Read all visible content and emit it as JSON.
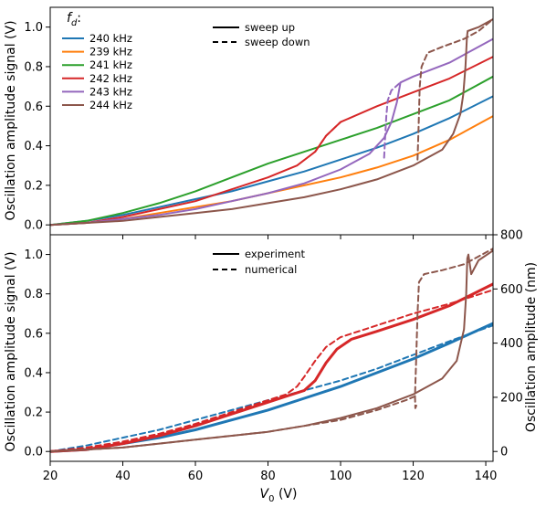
{
  "chart_data": [
    {
      "type": "line",
      "ylabel": "Oscillation amplitude signal (V)",
      "xlim": [
        20,
        142
      ],
      "ylim": [
        -0.05,
        1.1
      ],
      "yticks": [
        "0.0",
        "0.2",
        "0.4",
        "0.6",
        "0.8",
        "1.0"
      ],
      "legend": {
        "placement": "top-left",
        "title": "f_d:",
        "title_main": "f",
        "title_sub": "d",
        "title_suffix": ":"
      },
      "style_legend": {
        "placement": "top-center",
        "entries": [
          {
            "label": "sweep up",
            "dash": "solid"
          },
          {
            "label": "sweep down",
            "dash": "dashed"
          }
        ]
      },
      "series": [
        {
          "name": "240 kHz",
          "color": "#1f77b4",
          "style": "solid",
          "points": [
            [
              20,
              0.0
            ],
            [
              30,
              0.02
            ],
            [
              40,
              0.05
            ],
            [
              50,
              0.09
            ],
            [
              60,
              0.13
            ],
            [
              70,
              0.17
            ],
            [
              80,
              0.22
            ],
            [
              90,
              0.27
            ],
            [
              100,
              0.33
            ],
            [
              110,
              0.39
            ],
            [
              120,
              0.46
            ],
            [
              130,
              0.54
            ],
            [
              142,
              0.65
            ]
          ]
        },
        {
          "name": "239 kHz",
          "color": "#ff7f0e",
          "style": "solid",
          "points": [
            [
              20,
              0.0
            ],
            [
              30,
              0.01
            ],
            [
              40,
              0.03
            ],
            [
              50,
              0.06
            ],
            [
              60,
              0.09
            ],
            [
              70,
              0.12
            ],
            [
              80,
              0.16
            ],
            [
              90,
              0.2
            ],
            [
              100,
              0.24
            ],
            [
              110,
              0.29
            ],
            [
              120,
              0.35
            ],
            [
              130,
              0.43
            ],
            [
              142,
              0.55
            ]
          ]
        },
        {
          "name": "241 kHz",
          "color": "#2ca02c",
          "style": "solid",
          "points": [
            [
              20,
              0.0
            ],
            [
              30,
              0.02
            ],
            [
              40,
              0.06
            ],
            [
              50,
              0.11
            ],
            [
              60,
              0.17
            ],
            [
              70,
              0.24
            ],
            [
              80,
              0.31
            ],
            [
              90,
              0.37
            ],
            [
              100,
              0.43
            ],
            [
              110,
              0.49
            ],
            [
              120,
              0.56
            ],
            [
              130,
              0.63
            ],
            [
              142,
              0.75
            ]
          ]
        },
        {
          "name": "242 kHz",
          "color": "#d62728",
          "style": "solid",
          "points": [
            [
              20,
              0.0
            ],
            [
              30,
              0.01
            ],
            [
              40,
              0.04
            ],
            [
              50,
              0.08
            ],
            [
              60,
              0.12
            ],
            [
              70,
              0.18
            ],
            [
              80,
              0.24
            ],
            [
              88,
              0.3
            ],
            [
              93,
              0.37
            ],
            [
              96,
              0.45
            ],
            [
              100,
              0.52
            ],
            [
              110,
              0.6
            ],
            [
              120,
              0.67
            ],
            [
              130,
              0.74
            ],
            [
              142,
              0.85
            ]
          ]
        },
        {
          "name": "243 kHz",
          "color": "#9467bd",
          "style": "solid",
          "points": [
            [
              20,
              0.0
            ],
            [
              30,
              0.01
            ],
            [
              40,
              0.03
            ],
            [
              50,
              0.05
            ],
            [
              60,
              0.08
            ],
            [
              70,
              0.12
            ],
            [
              80,
              0.16
            ],
            [
              90,
              0.21
            ],
            [
              100,
              0.28
            ],
            [
              108,
              0.36
            ],
            [
              112,
              0.44
            ],
            [
              114,
              0.52
            ],
            [
              115.5,
              0.62
            ],
            [
              116.5,
              0.72
            ],
            [
              120,
              0.75
            ],
            [
              130,
              0.82
            ],
            [
              142,
              0.94
            ]
          ]
        },
        {
          "name": "244 kHz",
          "color": "#8c564b",
          "style": "solid",
          "points": [
            [
              20,
              0.0
            ],
            [
              30,
              0.01
            ],
            [
              40,
              0.02
            ],
            [
              50,
              0.04
            ],
            [
              60,
              0.06
            ],
            [
              70,
              0.08
            ],
            [
              80,
              0.11
            ],
            [
              90,
              0.14
            ],
            [
              100,
              0.18
            ],
            [
              110,
              0.23
            ],
            [
              120,
              0.3
            ],
            [
              128,
              0.38
            ],
            [
              131,
              0.46
            ],
            [
              133,
              0.56
            ],
            [
              133.8,
              0.66
            ],
            [
              134.4,
              0.8
            ],
            [
              134.8,
              0.95
            ],
            [
              135,
              0.98
            ],
            [
              138,
              1.0
            ],
            [
              142,
              1.04
            ]
          ]
        },
        {
          "name": "242 kHz sweep down",
          "color": "#d62728",
          "style": "dashed",
          "points": [
            [
              93,
              0.37
            ],
            [
              96,
              0.45
            ],
            [
              100,
              0.52
            ]
          ]
        },
        {
          "name": "243 kHz sweep down",
          "color": "#9467bd",
          "style": "dashed",
          "points": [
            [
              112,
              0.34
            ],
            [
              112.3,
              0.45
            ],
            [
              112.6,
              0.55
            ],
            [
              113,
              0.63
            ],
            [
              114,
              0.68
            ],
            [
              116.5,
              0.72
            ]
          ]
        },
        {
          "name": "244 kHz sweep down",
          "color": "#8c564b",
          "style": "dashed",
          "points": [
            [
              121.2,
              0.33
            ],
            [
              121.5,
              0.5
            ],
            [
              121.8,
              0.7
            ],
            [
              122.3,
              0.8
            ],
            [
              124,
              0.87
            ],
            [
              128,
              0.9
            ],
            [
              134,
              0.94
            ],
            [
              138,
              0.98
            ],
            [
              142,
              1.04
            ]
          ]
        }
      ]
    },
    {
      "type": "line",
      "xlabel": "V_0 (V)",
      "xlabel_main": "V",
      "xlabel_sub": "0",
      "xlabel_suffix": " (V)",
      "ylabel": "Oscillation amplitude signal (V)",
      "ylabel_right": "Oscillation amplitude (nm)",
      "xlim": [
        20,
        142
      ],
      "ylim": [
        -0.05,
        1.1
      ],
      "xticks": [
        "20",
        "40",
        "60",
        "80",
        "100",
        "120",
        "140"
      ],
      "yticks": [
        "0.0",
        "0.2",
        "0.4",
        "0.6",
        "0.8",
        "1.0"
      ],
      "yticks_right": [
        "0",
        "200",
        "400",
        "600",
        "800"
      ],
      "style_legend": {
        "placement": "top-center",
        "entries": [
          {
            "label": "experiment",
            "dash": "solid"
          },
          {
            "label": "numerical",
            "dash": "dashed"
          }
        ]
      },
      "series": [
        {
          "name": "240 kHz experiment",
          "color": "#1f77b4",
          "style": "solid",
          "width": 3,
          "points": [
            [
              20,
              0.0
            ],
            [
              30,
              0.01
            ],
            [
              40,
              0.04
            ],
            [
              50,
              0.07
            ],
            [
              60,
              0.11
            ],
            [
              70,
              0.16
            ],
            [
              80,
              0.21
            ],
            [
              90,
              0.27
            ],
            [
              100,
              0.33
            ],
            [
              110,
              0.4
            ],
            [
              120,
              0.47
            ],
            [
              130,
              0.55
            ],
            [
              142,
              0.65
            ]
          ]
        },
        {
          "name": "240 kHz numerical",
          "color": "#1f77b4",
          "style": "dashed",
          "points": [
            [
              20,
              0.0
            ],
            [
              30,
              0.03
            ],
            [
              40,
              0.07
            ],
            [
              50,
              0.11
            ],
            [
              60,
              0.16
            ],
            [
              70,
              0.21
            ],
            [
              80,
              0.26
            ],
            [
              90,
              0.31
            ],
            [
              100,
              0.36
            ],
            [
              110,
              0.42
            ],
            [
              120,
              0.49
            ],
            [
              130,
              0.56
            ],
            [
              142,
              0.64
            ]
          ]
        },
        {
          "name": "242 kHz experiment",
          "color": "#d62728",
          "style": "solid",
          "width": 3,
          "points": [
            [
              20,
              0.0
            ],
            [
              30,
              0.01
            ],
            [
              40,
              0.04
            ],
            [
              50,
              0.08
            ],
            [
              60,
              0.13
            ],
            [
              70,
              0.19
            ],
            [
              80,
              0.25
            ],
            [
              85,
              0.28
            ],
            [
              90,
              0.31
            ],
            [
              93,
              0.36
            ],
            [
              96,
              0.45
            ],
            [
              99,
              0.52
            ],
            [
              103,
              0.57
            ],
            [
              110,
              0.61
            ],
            [
              120,
              0.67
            ],
            [
              130,
              0.74
            ],
            [
              142,
              0.85
            ]
          ]
        },
        {
          "name": "242 kHz numerical",
          "color": "#d62728",
          "style": "dashed",
          "points": [
            [
              20,
              0.0
            ],
            [
              30,
              0.02
            ],
            [
              40,
              0.05
            ],
            [
              50,
              0.09
            ],
            [
              60,
              0.14
            ],
            [
              70,
              0.2
            ],
            [
              80,
              0.26
            ],
            [
              85,
              0.29
            ],
            [
              88,
              0.33
            ],
            [
              90,
              0.38
            ],
            [
              93,
              0.46
            ],
            [
              96,
              0.53
            ],
            [
              100,
              0.58
            ],
            [
              110,
              0.64
            ],
            [
              120,
              0.7
            ],
            [
              130,
              0.75
            ],
            [
              142,
              0.82
            ]
          ]
        },
        {
          "name": "244 kHz experiment",
          "color": "#8c564b",
          "style": "solid",
          "points": [
            [
              20,
              0.0
            ],
            [
              30,
              0.01
            ],
            [
              40,
              0.02
            ],
            [
              50,
              0.04
            ],
            [
              60,
              0.06
            ],
            [
              70,
              0.08
            ],
            [
              80,
              0.1
            ],
            [
              90,
              0.13
            ],
            [
              100,
              0.17
            ],
            [
              110,
              0.22
            ],
            [
              120,
              0.29
            ],
            [
              128,
              0.37
            ],
            [
              132,
              0.46
            ],
            [
              134,
              0.62
            ],
            [
              134.6,
              0.8
            ],
            [
              134.9,
              0.98
            ],
            [
              135.2,
              1.0
            ],
            [
              136,
              0.9
            ],
            [
              138,
              0.97
            ],
            [
              142,
              1.02
            ]
          ]
        },
        {
          "name": "244 kHz numerical",
          "color": "#8c564b",
          "style": "dashed",
          "points": [
            [
              20,
              0.0
            ],
            [
              30,
              0.01
            ],
            [
              40,
              0.02
            ],
            [
              50,
              0.04
            ],
            [
              60,
              0.06
            ],
            [
              70,
              0.08
            ],
            [
              80,
              0.1
            ],
            [
              90,
              0.13
            ],
            [
              100,
              0.16
            ],
            [
              110,
              0.21
            ],
            [
              118,
              0.26
            ],
            [
              120.5,
              0.28
            ],
            [
              120.8,
              0.45
            ],
            [
              121.2,
              0.7
            ],
            [
              121.6,
              0.86
            ],
            [
              123,
              0.9
            ],
            [
              128,
              0.92
            ],
            [
              134,
              0.95
            ],
            [
              138,
              0.99
            ],
            [
              142,
              1.03
            ]
          ]
        },
        {
          "name": "244 kHz numerical sweep down",
          "color": "#8c564b",
          "style": "dashed",
          "points": [
            [
              120.5,
              0.28
            ],
            [
              120.6,
              0.22
            ],
            [
              121,
              0.24
            ]
          ]
        }
      ]
    }
  ]
}
